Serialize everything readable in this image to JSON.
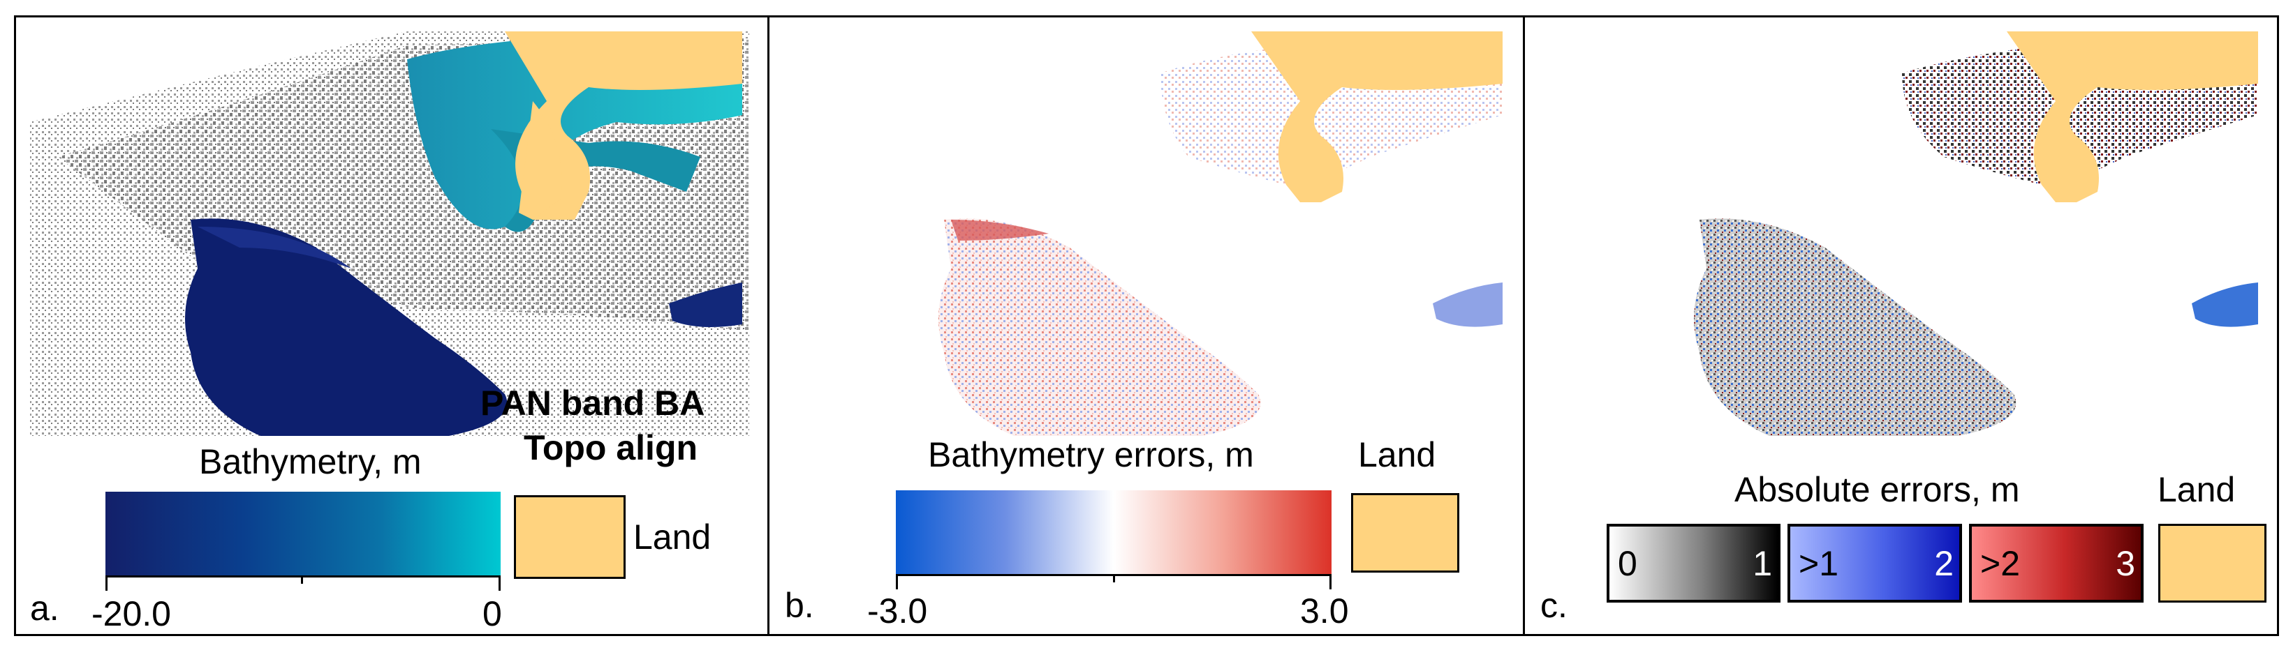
{
  "panels": {
    "a": {
      "letter": "a.",
      "title_line1": "PAN band BA",
      "title_line2": "Topo align",
      "colorbar_label": "Bathymetry, m",
      "tick_min": "-20.0",
      "tick_max": "0",
      "land_label": "Land"
    },
    "b": {
      "letter": "b.",
      "colorbar_label": "Bathymetry errors, m",
      "tick_min": "-3.0",
      "tick_max": "3.0",
      "land_label": "Land"
    },
    "c": {
      "letter": "c.",
      "colorbar_label": "Absolute errors, m",
      "land_label": "Land",
      "classes": [
        {
          "left": "0",
          "right": "1"
        },
        {
          "left": ">1",
          "right": "2"
        },
        {
          "left": ">2",
          "right": "3"
        }
      ]
    }
  },
  "colors": {
    "land": "#ffd37f",
    "bathy_deep": "#0d1f6e",
    "bathy_shallow": "#00c8d2",
    "error_neg": "#0a5ad2",
    "error_pos": "#dc3228",
    "noise_gray": "#8a8a8a"
  }
}
